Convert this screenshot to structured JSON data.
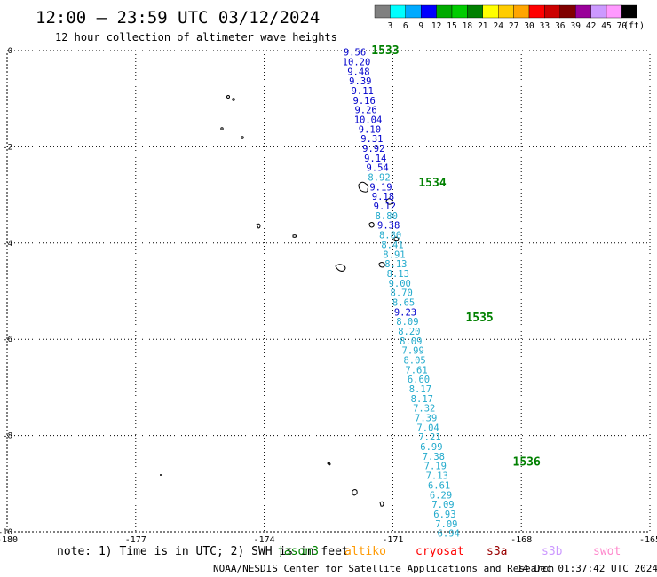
{
  "header": {
    "title": "12:00 – 23:59 UTC 03/12/2024",
    "subtitle": "12 hour collection of altimeter wave heights"
  },
  "footer": {
    "note": "note: 1) Time is in UTC; 2) SWH is in feet",
    "credit": "NOAA/NESDIS Center for Satellite Applications and Research",
    "timestamp": "14 Dec 01:37:42 UTC 2024"
  },
  "colorbar": {
    "unit": "(ft)",
    "labels": [
      "3",
      "6",
      "9",
      "12",
      "15",
      "18",
      "21",
      "24",
      "27",
      "30",
      "33",
      "36",
      "39",
      "42",
      "45",
      "70"
    ],
    "colors": [
      "#808080",
      "#00ffff",
      "#00aaff",
      "#0000ff",
      "#00aa00",
      "#00cc00",
      "#008000",
      "#ffff00",
      "#ffcc00",
      "#ffa500",
      "#ff0000",
      "#cc0000",
      "#800000",
      "#990099",
      "#cc99ff",
      "#ff99ff",
      "#000000"
    ]
  },
  "satellites": [
    {
      "name": "jason3",
      "color": "#008000"
    },
    {
      "name": "altiko",
      "color": "#ff9900"
    },
    {
      "name": "cryosat",
      "color": "#ff0000"
    },
    {
      "name": "s3a",
      "color": "#990000"
    },
    {
      "name": "s3b",
      "color": "#cc99ff"
    },
    {
      "name": "swot",
      "color": "#ff88cc"
    }
  ],
  "chart_data": {
    "type": "scatter",
    "xlim": [
      -180,
      -165
    ],
    "ylim": [
      -10,
      0
    ],
    "x_ticks": [
      "-180",
      "-177",
      "-174",
      "-171",
      "-168",
      "-165"
    ],
    "y_ticks": [
      "0",
      "-2",
      "-4",
      "-6",
      "-8",
      "-10"
    ],
    "grid": true,
    "time_labels": [
      {
        "text": "1533",
        "x": -171.5,
        "y": 0.0
      },
      {
        "text": "1534",
        "x": -170.4,
        "y": -2.75
      },
      {
        "text": "1535",
        "x": -169.3,
        "y": -5.55
      },
      {
        "text": "1536",
        "x": -168.2,
        "y": -8.55
      }
    ],
    "points": [
      {
        "x": -171.95,
        "y": -0.03,
        "v": "9.56",
        "c": "#0000cc"
      },
      {
        "x": -171.91,
        "y": -0.23,
        "v": "10.20",
        "c": "#0000cc"
      },
      {
        "x": -171.86,
        "y": -0.43,
        "v": "9.48",
        "c": "#0000cc"
      },
      {
        "x": -171.82,
        "y": -0.63,
        "v": "9.39",
        "c": "#0000cc"
      },
      {
        "x": -171.77,
        "y": -0.83,
        "v": "9.11",
        "c": "#0000cc"
      },
      {
        "x": -171.73,
        "y": -1.03,
        "v": "9.16",
        "c": "#0000cc"
      },
      {
        "x": -171.69,
        "y": -1.23,
        "v": "9.26",
        "c": "#0000cc"
      },
      {
        "x": -171.64,
        "y": -1.43,
        "v": "10.04",
        "c": "#0000cc"
      },
      {
        "x": -171.6,
        "y": -1.63,
        "v": "9.10",
        "c": "#0000cc"
      },
      {
        "x": -171.55,
        "y": -1.83,
        "v": "9.31",
        "c": "#0000cc"
      },
      {
        "x": -171.51,
        "y": -2.03,
        "v": "9.92",
        "c": "#0000cc"
      },
      {
        "x": -171.47,
        "y": -2.23,
        "v": "9.14",
        "c": "#0000cc"
      },
      {
        "x": -171.42,
        "y": -2.43,
        "v": "9.54",
        "c": "#0000cc"
      },
      {
        "x": -171.38,
        "y": -2.63,
        "v": "8.92",
        "c": "#22aacc"
      },
      {
        "x": -171.34,
        "y": -2.83,
        "v": "9.19",
        "c": "#0000cc"
      },
      {
        "x": -171.29,
        "y": -3.03,
        "v": "9.18",
        "c": "#0000cc"
      },
      {
        "x": -171.25,
        "y": -3.23,
        "v": "9.12",
        "c": "#0000cc"
      },
      {
        "x": -171.21,
        "y": -3.43,
        "v": "8.80",
        "c": "#22aacc"
      },
      {
        "x": -171.16,
        "y": -3.63,
        "v": "9.38",
        "c": "#0000cc"
      },
      {
        "x": -171.12,
        "y": -3.83,
        "v": "8.80",
        "c": "#22aacc"
      },
      {
        "x": -171.07,
        "y": -4.03,
        "v": "8.41",
        "c": "#22aacc"
      },
      {
        "x": -171.03,
        "y": -4.23,
        "v": "8.91",
        "c": "#22aacc"
      },
      {
        "x": -170.99,
        "y": -4.43,
        "v": "8.13",
        "c": "#22aacc"
      },
      {
        "x": -170.94,
        "y": -4.63,
        "v": "8.13",
        "c": "#22aacc"
      },
      {
        "x": -170.9,
        "y": -4.83,
        "v": "9.00",
        "c": "#22aacc"
      },
      {
        "x": -170.86,
        "y": -5.03,
        "v": "8.70",
        "c": "#22aacc"
      },
      {
        "x": -170.81,
        "y": -5.23,
        "v": "8.65",
        "c": "#22aacc"
      },
      {
        "x": -170.77,
        "y": -5.43,
        "v": "9.23",
        "c": "#0000cc"
      },
      {
        "x": -170.72,
        "y": -5.63,
        "v": "8.09",
        "c": "#22aacc"
      },
      {
        "x": -170.68,
        "y": -5.83,
        "v": "8.20",
        "c": "#22aacc"
      },
      {
        "x": -170.64,
        "y": -6.03,
        "v": "8.09",
        "c": "#22aacc"
      },
      {
        "x": -170.59,
        "y": -6.23,
        "v": "7.99",
        "c": "#22aacc"
      },
      {
        "x": -170.55,
        "y": -6.43,
        "v": "8.05",
        "c": "#22aacc"
      },
      {
        "x": -170.51,
        "y": -6.63,
        "v": "7.61",
        "c": "#22aacc"
      },
      {
        "x": -170.46,
        "y": -6.83,
        "v": "6.60",
        "c": "#22aacc"
      },
      {
        "x": -170.42,
        "y": -7.03,
        "v": "8.17",
        "c": "#22aacc"
      },
      {
        "x": -170.38,
        "y": -7.23,
        "v": "8.17",
        "c": "#22aacc"
      },
      {
        "x": -170.33,
        "y": -7.43,
        "v": "7.32",
        "c": "#22aacc"
      },
      {
        "x": -170.29,
        "y": -7.63,
        "v": "7.39",
        "c": "#22aacc"
      },
      {
        "x": -170.24,
        "y": -7.83,
        "v": "7.04",
        "c": "#22aacc"
      },
      {
        "x": -170.2,
        "y": -8.03,
        "v": "7.21",
        "c": "#22aacc"
      },
      {
        "x": -170.16,
        "y": -8.23,
        "v": "6.99",
        "c": "#22aacc"
      },
      {
        "x": -170.11,
        "y": -8.43,
        "v": "7.38",
        "c": "#22aacc"
      },
      {
        "x": -170.07,
        "y": -8.63,
        "v": "7.19",
        "c": "#22aacc"
      },
      {
        "x": -170.03,
        "y": -8.83,
        "v": "7.13",
        "c": "#22aacc"
      },
      {
        "x": -169.98,
        "y": -9.03,
        "v": "6.61",
        "c": "#22aacc"
      },
      {
        "x": -169.94,
        "y": -9.23,
        "v": "6.29",
        "c": "#22aacc"
      },
      {
        "x": -169.89,
        "y": -9.43,
        "v": "7.09",
        "c": "#22aacc"
      },
      {
        "x": -169.85,
        "y": -9.63,
        "v": "6.93",
        "c": "#22aacc"
      },
      {
        "x": -169.81,
        "y": -9.83,
        "v": "7.09",
        "c": "#22aacc"
      },
      {
        "x": -169.76,
        "y": -10.03,
        "v": "6.94",
        "c": "#22aacc"
      }
    ]
  }
}
